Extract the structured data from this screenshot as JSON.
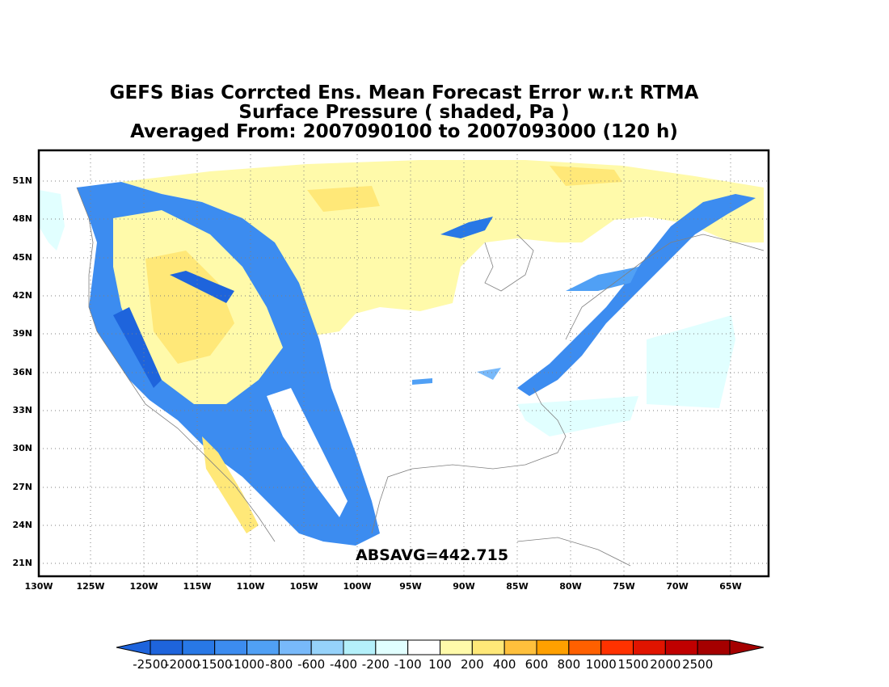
{
  "title": {
    "line1": "GEFS Bias Corrcted Ens. Mean Forecast Error w.r.t RTMA",
    "line2": "Surface Pressure ( shaded, Pa )",
    "line3": "Averaged From: 2007090100 to 2007093000 (120 h)"
  },
  "map": {
    "lat_labels": [
      "51N",
      "48N",
      "45N",
      "42N",
      "39N",
      "36N",
      "33N",
      "30N",
      "27N",
      "24N",
      "21N"
    ],
    "lon_labels": [
      "130W",
      "125W",
      "120W",
      "115W",
      "110W",
      "105W",
      "100W",
      "95W",
      "90W",
      "85W",
      "80W",
      "75W",
      "70W",
      "65W"
    ],
    "grid": true,
    "absavg_label": "ABSAVG=442.715"
  },
  "colorbar": {
    "labels": [
      "-2500",
      "-2000",
      "-1500",
      "-1000",
      "-800",
      "-600",
      "-400",
      "-200",
      "-100",
      "100",
      "200",
      "400",
      "600",
      "800",
      "1000",
      "1500",
      "2000",
      "2500"
    ],
    "colors": [
      "#1e64dc",
      "#2878e6",
      "#3c8cf0",
      "#50a0f5",
      "#78b9fa",
      "#96d2fa",
      "#b4f0fa",
      "#e1ffff",
      "#ffffff",
      "#fffaaa",
      "#ffe878",
      "#ffc03c",
      "#ffa000",
      "#ff6000",
      "#ff3200",
      "#e11400",
      "#c00000",
      "#a50000"
    ],
    "left_arrow_color": "#1e64dc",
    "right_arrow_color": "#a50000"
  },
  "legend_colors": {
    "land_outline": "#808080",
    "frame": "#000000"
  }
}
